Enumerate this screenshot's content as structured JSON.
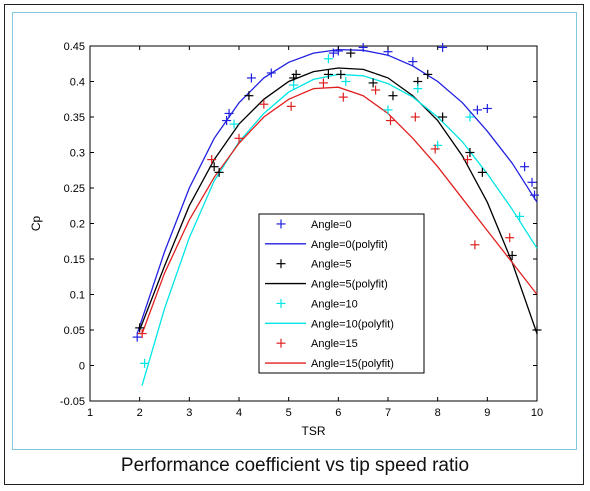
{
  "caption": "Performance coefficient vs tip speed ratio",
  "chart_data": {
    "type": "scatter",
    "xlabel": "TSR",
    "ylabel": "Cp",
    "xlim": [
      1,
      10
    ],
    "ylim": [
      -0.05,
      0.45
    ],
    "x_ticks": [
      "1",
      "2",
      "3",
      "4",
      "5",
      "6",
      "7",
      "8",
      "9",
      "10"
    ],
    "y_ticks": [
      "-0.05",
      "0",
      "0.05",
      "0.1",
      "0.15",
      "0.2",
      "0.25",
      "0.3",
      "0.35",
      "0.4",
      "0.45"
    ],
    "grid": false,
    "legend_position": "center-right",
    "legend": [
      {
        "label": "Angle=0",
        "kind": "marker",
        "color": "#2020e0"
      },
      {
        "label": "Angle=0(polyfit)",
        "kind": "line",
        "color": "#2020e0"
      },
      {
        "label": "Angle=5",
        "kind": "marker",
        "color": "#000000"
      },
      {
        "label": "Angle=5(polyfit)",
        "kind": "line",
        "color": "#000000"
      },
      {
        "label": "Angle=10",
        "kind": "marker",
        "color": "#00e5e5"
      },
      {
        "label": "Angle=10(polyfit)",
        "kind": "line",
        "color": "#00e5e5"
      },
      {
        "label": "Angle=15",
        "kind": "marker",
        "color": "#e02020"
      },
      {
        "label": "Angle=15(polyfit)",
        "kind": "line",
        "color": "#e02020"
      }
    ],
    "series": [
      {
        "name": "Angle=0",
        "color": "#2020e0",
        "points": [
          [
            1.95,
            0.04
          ],
          [
            3.75,
            0.345
          ],
          [
            3.8,
            0.355
          ],
          [
            4.25,
            0.405
          ],
          [
            4.65,
            0.412
          ],
          [
            5.9,
            0.44
          ],
          [
            6.0,
            0.443
          ],
          [
            6.5,
            0.448
          ],
          [
            7.0,
            0.442
          ],
          [
            7.5,
            0.428
          ],
          [
            8.1,
            0.448
          ],
          [
            8.8,
            0.36
          ],
          [
            9.0,
            0.362
          ],
          [
            9.75,
            0.28
          ],
          [
            9.9,
            0.258
          ],
          [
            9.95,
            0.24
          ]
        ],
        "fit": [
          [
            1.95,
            0.045
          ],
          [
            2.5,
            0.16
          ],
          [
            3,
            0.25
          ],
          [
            3.5,
            0.32
          ],
          [
            4,
            0.37
          ],
          [
            4.5,
            0.405
          ],
          [
            5,
            0.427
          ],
          [
            5.5,
            0.44
          ],
          [
            6,
            0.445
          ],
          [
            6.5,
            0.444
          ],
          [
            7,
            0.437
          ],
          [
            7.5,
            0.422
          ],
          [
            8,
            0.4
          ],
          [
            8.5,
            0.37
          ],
          [
            9,
            0.33
          ],
          [
            9.5,
            0.285
          ],
          [
            10,
            0.23
          ]
        ]
      },
      {
        "name": "Angle=5",
        "color": "#000000",
        "points": [
          [
            2.0,
            0.053
          ],
          [
            3.5,
            0.28
          ],
          [
            3.6,
            0.272
          ],
          [
            4.2,
            0.38
          ],
          [
            5.1,
            0.405
          ],
          [
            5.15,
            0.41
          ],
          [
            5.8,
            0.41
          ],
          [
            6.05,
            0.41
          ],
          [
            6.25,
            0.44
          ],
          [
            6.7,
            0.398
          ],
          [
            7.1,
            0.38
          ],
          [
            7.6,
            0.4
          ],
          [
            7.8,
            0.41
          ],
          [
            8.1,
            0.35
          ],
          [
            8.65,
            0.3
          ],
          [
            8.9,
            0.272
          ],
          [
            9.5,
            0.155
          ],
          [
            10.0,
            0.05
          ]
        ],
        "fit": [
          [
            2,
            0.05
          ],
          [
            2.5,
            0.14
          ],
          [
            3,
            0.225
          ],
          [
            3.5,
            0.29
          ],
          [
            4,
            0.34
          ],
          [
            4.5,
            0.375
          ],
          [
            5,
            0.4
          ],
          [
            5.5,
            0.414
          ],
          [
            6,
            0.419
          ],
          [
            6.5,
            0.417
          ],
          [
            7,
            0.405
          ],
          [
            7.5,
            0.38
          ],
          [
            8,
            0.345
          ],
          [
            8.5,
            0.295
          ],
          [
            9,
            0.23
          ],
          [
            9.5,
            0.145
          ],
          [
            10,
            0.045
          ]
        ]
      },
      {
        "name": "Angle=10",
        "color": "#00e5e5",
        "points": [
          [
            2.1,
            0.003
          ],
          [
            3.9,
            0.34
          ],
          [
            5.1,
            0.395
          ],
          [
            5.8,
            0.432
          ],
          [
            6.15,
            0.4
          ],
          [
            7.0,
            0.36
          ],
          [
            7.6,
            0.39
          ],
          [
            8.0,
            0.31
          ],
          [
            8.65,
            0.35
          ],
          [
            9.65,
            0.21
          ]
        ],
        "fit": [
          [
            2.05,
            -0.028
          ],
          [
            2.5,
            0.08
          ],
          [
            3,
            0.18
          ],
          [
            3.5,
            0.26
          ],
          [
            4,
            0.315
          ],
          [
            4.5,
            0.355
          ],
          [
            5,
            0.385
          ],
          [
            5.5,
            0.403
          ],
          [
            6,
            0.41
          ],
          [
            6.5,
            0.408
          ],
          [
            7,
            0.397
          ],
          [
            7.5,
            0.378
          ],
          [
            8,
            0.35
          ],
          [
            8.5,
            0.315
          ],
          [
            9,
            0.27
          ],
          [
            9.5,
            0.22
          ],
          [
            10,
            0.165
          ]
        ]
      },
      {
        "name": "Angle=15",
        "color": "#e02020",
        "points": [
          [
            2.05,
            0.045
          ],
          [
            3.45,
            0.29
          ],
          [
            4.0,
            0.32
          ],
          [
            4.5,
            0.368
          ],
          [
            5.05,
            0.365
          ],
          [
            5.7,
            0.398
          ],
          [
            6.1,
            0.378
          ],
          [
            6.75,
            0.388
          ],
          [
            7.05,
            0.345
          ],
          [
            7.55,
            0.35
          ],
          [
            7.95,
            0.305
          ],
          [
            8.6,
            0.29
          ],
          [
            8.75,
            0.17
          ],
          [
            9.45,
            0.18
          ]
        ],
        "fit": [
          [
            2.05,
            0.045
          ],
          [
            2.5,
            0.13
          ],
          [
            3,
            0.205
          ],
          [
            3.5,
            0.265
          ],
          [
            4,
            0.313
          ],
          [
            4.5,
            0.35
          ],
          [
            5,
            0.375
          ],
          [
            5.5,
            0.39
          ],
          [
            6,
            0.392
          ],
          [
            6.5,
            0.38
          ],
          [
            7,
            0.355
          ],
          [
            7.5,
            0.32
          ],
          [
            8,
            0.28
          ],
          [
            8.5,
            0.235
          ],
          [
            9,
            0.19
          ],
          [
            9.5,
            0.145
          ],
          [
            10,
            0.1
          ]
        ]
      }
    ]
  }
}
